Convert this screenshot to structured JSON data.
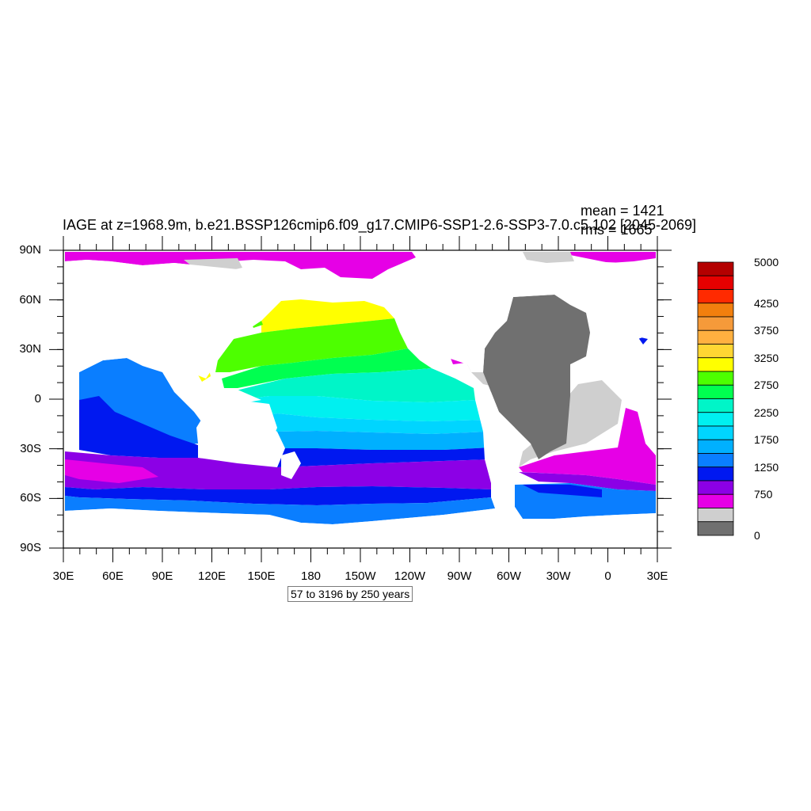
{
  "title": "IAGE at z=1968.9m, b.e21.BSSP126cmip6.f09_g17.CMIP6-SSP1-2.6-SSP3-7.0.c5.102 [2045-2069]",
  "stats": {
    "mean": "mean = 1421",
    "rms": "rms = 1665"
  },
  "axes": {
    "lat_labels": [
      "90N",
      "60N",
      "30N",
      "0",
      "30S",
      "60S",
      "90S"
    ],
    "lon_labels": [
      "30E",
      "60E",
      "90E",
      "120E",
      "150E",
      "180",
      "150W",
      "120W",
      "90W",
      "60W",
      "30W",
      "0",
      "30E"
    ]
  },
  "contour_info": "57 to 3196 by 250 years",
  "colorbar": {
    "labels": [
      "5000",
      "4250",
      "3750",
      "3250",
      "2750",
      "2250",
      "1750",
      "1250",
      "750",
      "0"
    ],
    "colors": [
      "#b40000",
      "#e60000",
      "#ff2a00",
      "#f27f0e",
      "#f59a3a",
      "#ffb040",
      "#ffd633",
      "#ffff00",
      "#4dff00",
      "#00ff50",
      "#00f5c8",
      "#00f0f0",
      "#00d5ff",
      "#00b0ff",
      "#0a7eff",
      "#0018f0",
      "#8c00e6",
      "#e600e6",
      "#cfcfcf",
      "#707070"
    ]
  },
  "chart_data": {
    "type": "heatmap",
    "variable": "IAGE",
    "depth": "1968.9m",
    "period": "2045-2069",
    "units": "years",
    "mean": 1421,
    "rms": 1665,
    "levels": {
      "min": 57,
      "max": 3196,
      "interval": 250
    },
    "colorbar_ticks": [
      0,
      750,
      1250,
      1750,
      2250,
      2750,
      3250,
      3750,
      4250,
      5000
    ],
    "lat_range": [
      -90,
      90
    ],
    "lon_range": [
      30,
      390
    ]
  }
}
